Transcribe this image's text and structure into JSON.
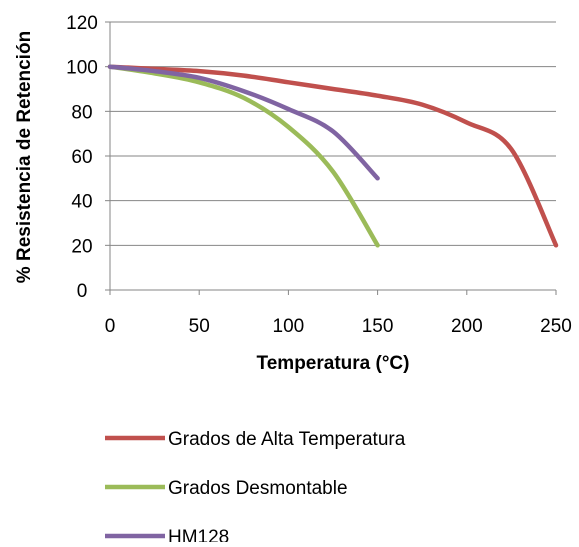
{
  "chart_data": {
    "type": "line",
    "xlabel": "Temperatura (°C)",
    "ylabel": "% Resistencia de Retención",
    "xlim": [
      0,
      250
    ],
    "ylim": [
      0,
      120
    ],
    "xticks": [
      0,
      50,
      100,
      150,
      200,
      250
    ],
    "yticks": [
      0,
      20,
      40,
      60,
      80,
      100,
      120
    ],
    "grid": "horizontal",
    "legend_position": "bottom",
    "series": [
      {
        "name": "Grados de Alta Temperatura",
        "color": "#c0504d",
        "points": [
          [
            0,
            100
          ],
          [
            25,
            99
          ],
          [
            50,
            98
          ],
          [
            75,
            96
          ],
          [
            100,
            93
          ],
          [
            125,
            90
          ],
          [
            150,
            87
          ],
          [
            175,
            83
          ],
          [
            200,
            75
          ],
          [
            225,
            63
          ],
          [
            250,
            20
          ]
        ]
      },
      {
        "name": "Grados Desmontable",
        "color": "#9bbb59",
        "points": [
          [
            0,
            100
          ],
          [
            25,
            97
          ],
          [
            50,
            93
          ],
          [
            75,
            86
          ],
          [
            100,
            73
          ],
          [
            125,
            53
          ],
          [
            150,
            20
          ]
        ]
      },
      {
        "name": "HM128",
        "color": "#8064a2",
        "points": [
          [
            0,
            100
          ],
          [
            25,
            98
          ],
          [
            50,
            95
          ],
          [
            75,
            89
          ],
          [
            100,
            81
          ],
          [
            125,
            71
          ],
          [
            150,
            50
          ]
        ]
      }
    ]
  }
}
